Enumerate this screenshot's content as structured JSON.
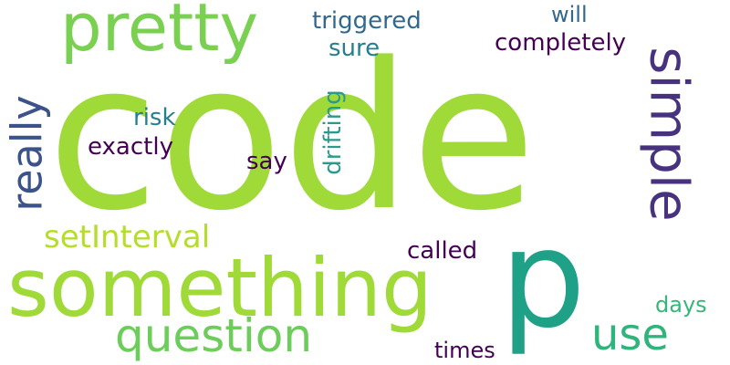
{
  "words": [
    {
      "id": "code",
      "text": "code",
      "color": "#a0da39"
    },
    {
      "id": "p",
      "text": "p",
      "color": "#1fa187"
    },
    {
      "id": "something",
      "text": "something",
      "color": "#a0da39"
    },
    {
      "id": "pretty",
      "text": "pretty",
      "color": "#7ad151"
    },
    {
      "id": "simple",
      "text": "simple",
      "color": "#46327e"
    },
    {
      "id": "question",
      "text": "question",
      "color": "#6ccd5a"
    },
    {
      "id": "use",
      "text": "use",
      "color": "#2fb47c"
    },
    {
      "id": "really",
      "text": "really",
      "color": "#3b528b"
    },
    {
      "id": "setinterval",
      "text": "setInterval",
      "color": "#b5de2b"
    },
    {
      "id": "completely",
      "text": "completely",
      "color": "#440154"
    },
    {
      "id": "triggered",
      "text": "triggered",
      "color": "#31688e"
    },
    {
      "id": "exactly",
      "text": "exactly",
      "color": "#440154"
    },
    {
      "id": "called",
      "text": "called",
      "color": "#440154"
    },
    {
      "id": "sure",
      "text": "sure",
      "color": "#277f8e"
    },
    {
      "id": "say",
      "text": "say",
      "color": "#440154"
    },
    {
      "id": "risk",
      "text": "risk",
      "color": "#277f8e"
    },
    {
      "id": "will",
      "text": "will",
      "color": "#31688e"
    },
    {
      "id": "drifting",
      "text": "drifting",
      "color": "#2a9a8a"
    },
    {
      "id": "times",
      "text": "times",
      "color": "#440154"
    },
    {
      "id": "days",
      "text": "days",
      "color": "#35b779"
    }
  ]
}
